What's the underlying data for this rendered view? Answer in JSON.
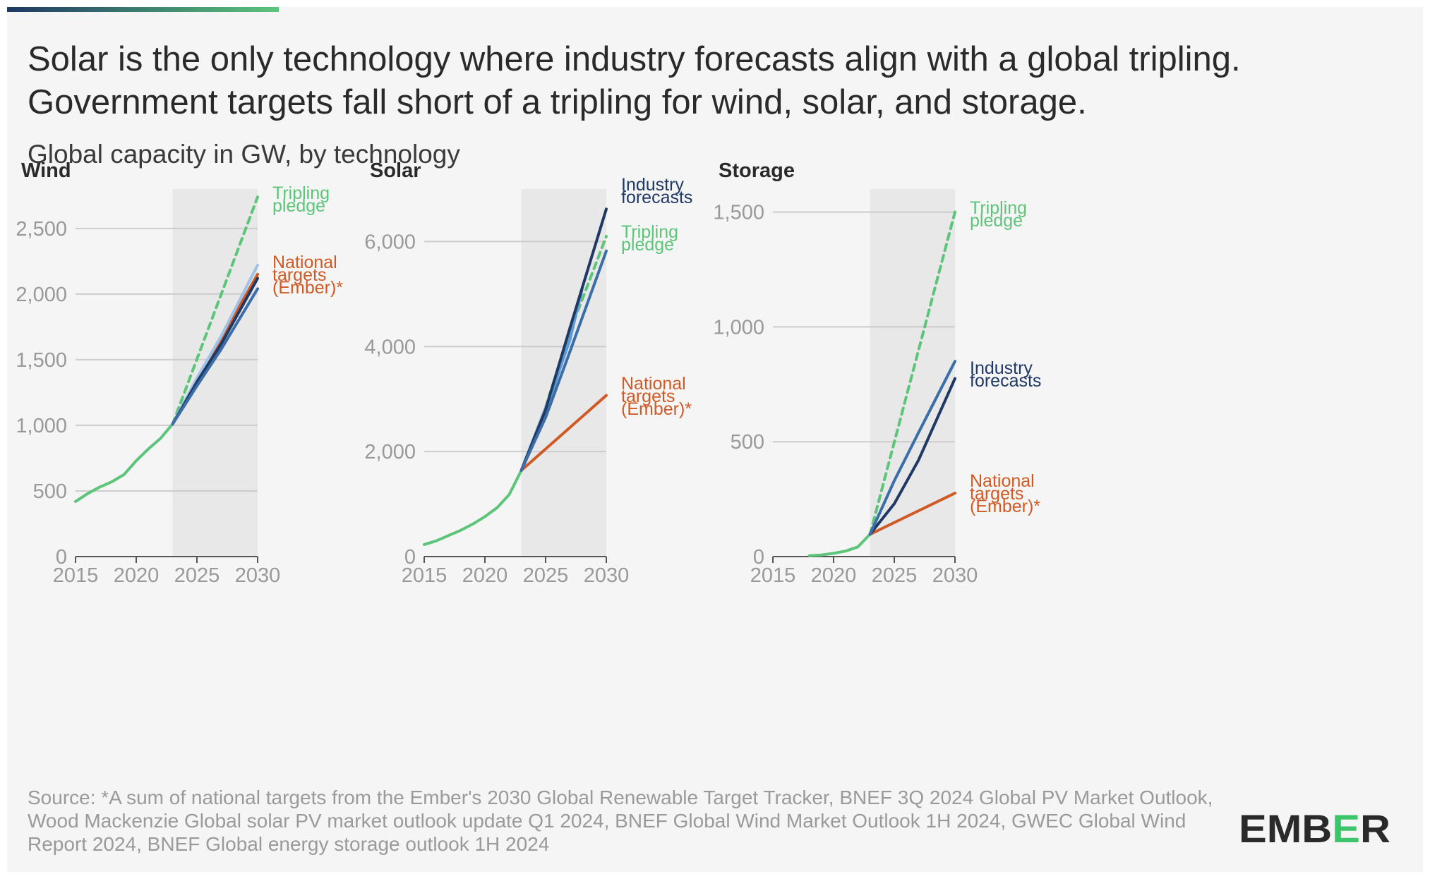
{
  "header": {
    "title": "Solar is the only technology where industry forecasts align with a global tripling. Government targets fall short of a tripling for wind, solar, and storage.",
    "subtitle": "Global capacity in GW, by technology"
  },
  "footer": {
    "source": "Source: *A sum of national targets from the Ember's 2030 Global Renewable Target Tracker, BNEF 3Q 2024 Global PV Market Outlook, Wood Mackenzie Global solar PV market outlook update Q1 2024, BNEF Global Wind Market Outlook 1H 2024, GWEC Global Wind Report 2024, BNEF Global energy storage outlook 1H 2024",
    "logo_text": "EMBER"
  },
  "colors": {
    "tripling": "#5cc57a",
    "national": "#cf5a25",
    "industry_dark": "#1f3864",
    "industry_mid": "#3b6ea8",
    "industry_light": "#9fc3e8",
    "forecast_band": "#e8e8e8",
    "grid": "#cccccc",
    "brand_green": "#3cc56b",
    "brand_navy": "#1f3864"
  },
  "chart_data": [
    {
      "title": "Wind",
      "type": "line",
      "ylim": [
        0,
        2800
      ],
      "yticks": [
        0,
        500,
        1000,
        1500,
        2000,
        2500
      ],
      "ytick_labels": [
        "0",
        "500",
        "1,000",
        "1,500",
        "2,000",
        "2,500"
      ],
      "xlim": [
        2015,
        2030
      ],
      "xticks": [
        2015,
        2020,
        2025,
        2030
      ],
      "xtick_labels": [
        "2015",
        "2020",
        "2025",
        "2030"
      ],
      "forecast_band": [
        2023,
        2030
      ],
      "series": [
        {
          "color": "#5cc57a",
          "style": "solid",
          "points": [
            [
              2015,
              420
            ],
            [
              2016,
              480
            ],
            [
              2017,
              530
            ],
            [
              2018,
              570
            ],
            [
              2019,
              625
            ],
            [
              2020,
              730
            ],
            [
              2021,
              820
            ],
            [
              2022,
              900
            ],
            [
              2023,
              1010
            ]
          ]
        },
        {
          "color": "#5cc57a",
          "style": "dashed",
          "points": [
            [
              2023,
              1010
            ],
            [
              2030,
              2740
            ]
          ]
        },
        {
          "color": "#cf5a25",
          "style": "solid",
          "points": [
            [
              2023,
              1010
            ],
            [
              2030,
              2150
            ]
          ]
        },
        {
          "color": "#9fc3e8",
          "style": "solid",
          "points": [
            [
              2023,
              1010
            ],
            [
              2025,
              1360
            ],
            [
              2027,
              1680
            ],
            [
              2030,
              2220
            ]
          ]
        },
        {
          "color": "#1f3864",
          "style": "solid",
          "points": [
            [
              2023,
              1010
            ],
            [
              2025,
              1330
            ],
            [
              2027,
              1620
            ],
            [
              2030,
              2120
            ]
          ]
        },
        {
          "color": "#3b6ea8",
          "style": "solid",
          "points": [
            [
              2023,
              1010
            ],
            [
              2025,
              1300
            ],
            [
              2027,
              1580
            ],
            [
              2030,
              2040
            ]
          ]
        }
      ],
      "annotations": [
        {
          "text": [
            "Tripling",
            "pledge"
          ],
          "color": "#5cc57a"
        },
        {
          "text": [
            "National",
            "targets",
            "(Ember)*"
          ],
          "color": "#cf5a25"
        }
      ]
    },
    {
      "title": "Solar",
      "type": "line",
      "ylim": [
        0,
        7000
      ],
      "yticks": [
        0,
        2000,
        4000,
        6000
      ],
      "ytick_labels": [
        "0",
        "2,000",
        "4,000",
        "6,000"
      ],
      "xlim": [
        2015,
        2030
      ],
      "xticks": [
        2015,
        2020,
        2025,
        2030
      ],
      "xtick_labels": [
        "2015",
        "2020",
        "2025",
        "2030"
      ],
      "forecast_band": [
        2023,
        2030
      ],
      "series": [
        {
          "color": "#5cc57a",
          "style": "solid",
          "points": [
            [
              2015,
              230
            ],
            [
              2016,
              300
            ],
            [
              2017,
              400
            ],
            [
              2018,
              500
            ],
            [
              2019,
              620
            ],
            [
              2020,
              760
            ],
            [
              2021,
              930
            ],
            [
              2022,
              1180
            ],
            [
              2023,
              1640
            ]
          ]
        },
        {
          "color": "#5cc57a",
          "style": "dashed",
          "points": [
            [
              2023,
              1640
            ],
            [
              2025,
              2850
            ],
            [
              2027,
              4280
            ],
            [
              2030,
              6100
            ]
          ]
        },
        {
          "color": "#cf5a25",
          "style": "solid",
          "points": [
            [
              2023,
              1640
            ],
            [
              2030,
              3070
            ]
          ]
        },
        {
          "color": "#9fc3e8",
          "style": "solid",
          "points": [
            [
              2023,
              1640
            ],
            [
              2025,
              2850
            ],
            [
              2027,
              4100
            ],
            [
              2028,
              5120
            ]
          ]
        },
        {
          "color": "#5b9bd5",
          "style": "solid",
          "points": [
            [
              2023,
              1640
            ],
            [
              2025,
              2750
            ],
            [
              2027,
              4150
            ],
            [
              2028,
              5080
            ]
          ]
        },
        {
          "color": "#1f3864",
          "style": "solid",
          "points": [
            [
              2023,
              1640
            ],
            [
              2025,
              2800
            ],
            [
              2027,
              4350
            ],
            [
              2030,
              6620
            ]
          ]
        },
        {
          "color": "#3b6ea8",
          "style": "solid",
          "points": [
            [
              2023,
              1640
            ],
            [
              2025,
              2650
            ],
            [
              2027,
              3900
            ],
            [
              2030,
              5820
            ]
          ]
        }
      ],
      "annotations": [
        {
          "text": [
            "Industry",
            "forecasts"
          ],
          "color": "#1f3864"
        },
        {
          "text": [
            "Tripling",
            "pledge"
          ],
          "color": "#5cc57a"
        },
        {
          "text": [
            "National",
            "targets",
            "(Ember)*"
          ],
          "color": "#cf5a25"
        }
      ]
    },
    {
      "title": "Storage",
      "type": "line",
      "ylim": [
        0,
        1600
      ],
      "yticks": [
        0,
        500,
        1000,
        1500
      ],
      "ytick_labels": [
        "0",
        "500",
        "1,000",
        "1,500"
      ],
      "xlim": [
        2015,
        2030
      ],
      "xticks": [
        2015,
        2020,
        2025,
        2030
      ],
      "xtick_labels": [
        "2015",
        "2020",
        "2025",
        "2030"
      ],
      "forecast_band": [
        2023,
        2030
      ],
      "series": [
        {
          "color": "#5cc57a",
          "style": "solid",
          "points": [
            [
              2018,
              4
            ],
            [
              2019,
              7
            ],
            [
              2020,
              14
            ],
            [
              2021,
              24
            ],
            [
              2022,
              42
            ],
            [
              2023,
              97
            ]
          ]
        },
        {
          "color": "#5cc57a",
          "style": "dashed",
          "points": [
            [
              2023,
              97
            ],
            [
              2030,
              1500
            ]
          ]
        },
        {
          "color": "#cf5a25",
          "style": "solid",
          "points": [
            [
              2023,
              97
            ],
            [
              2030,
              276
            ]
          ]
        },
        {
          "color": "#1f3864",
          "style": "solid",
          "points": [
            [
              2023,
              97
            ],
            [
              2025,
              230
            ],
            [
              2027,
              420
            ],
            [
              2030,
              775
            ]
          ]
        },
        {
          "color": "#3b6ea8",
          "style": "solid",
          "points": [
            [
              2023,
              97
            ],
            [
              2025,
              330
            ],
            [
              2027,
              540
            ],
            [
              2030,
              850
            ]
          ]
        }
      ],
      "annotations": [
        {
          "text": [
            "Tripling",
            "pledge"
          ],
          "color": "#5cc57a"
        },
        {
          "text": [
            "Industry",
            "forecasts"
          ],
          "color": "#1f3864"
        },
        {
          "text": [
            "National",
            "targets",
            "(Ember)*"
          ],
          "color": "#cf5a25"
        }
      ]
    }
  ]
}
